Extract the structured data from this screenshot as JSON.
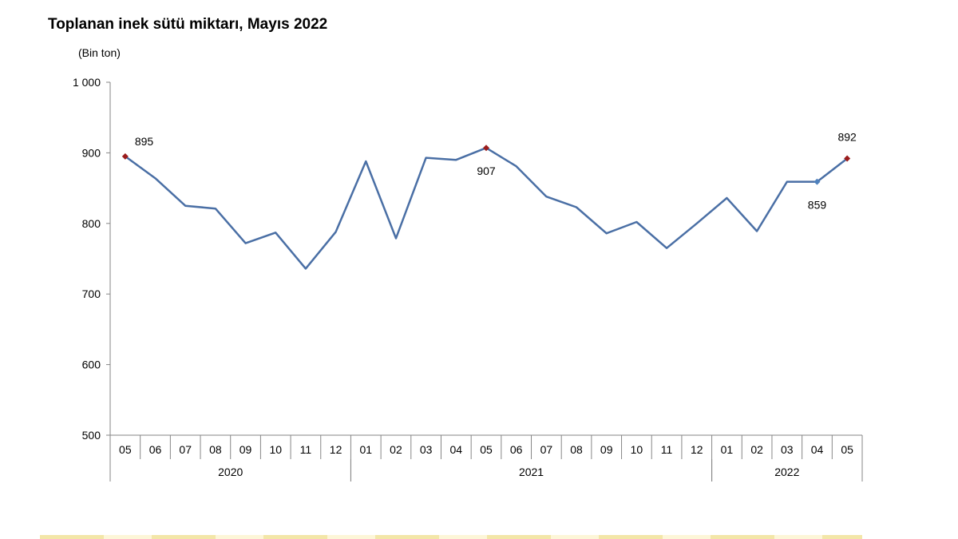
{
  "chart_data": {
    "type": "line",
    "title": "Toplanan inek sütü miktarı, Mayıs 2022",
    "unit_label": "(Bin  ton)",
    "ylim": [
      500,
      1000
    ],
    "yticks": [
      500,
      600,
      700,
      800,
      900,
      1000
    ],
    "ytick_labels": [
      "500",
      "600",
      "700",
      "800",
      "900",
      "1 000"
    ],
    "x": [
      "05",
      "06",
      "07",
      "08",
      "09",
      "10",
      "11",
      "12",
      "01",
      "02",
      "03",
      "04",
      "05",
      "06",
      "07",
      "08",
      "09",
      "10",
      "11",
      "12",
      "01",
      "02",
      "03",
      "04",
      "05"
    ],
    "year_groups": [
      {
        "label": "2020",
        "start": 0,
        "end": 7
      },
      {
        "label": "2021",
        "start": 8,
        "end": 19
      },
      {
        "label": "2022",
        "start": 20,
        "end": 24
      }
    ],
    "series": [
      {
        "values": [
          895,
          864,
          825,
          821,
          772,
          787,
          736,
          788,
          888,
          779,
          893,
          890,
          907,
          881,
          838,
          823,
          786,
          802,
          765,
          800,
          836,
          789,
          859,
          859,
          892
        ]
      }
    ],
    "highlights": [
      {
        "index": 0,
        "label": "895",
        "color": "#9b1c1c",
        "label_pos": "above-right"
      },
      {
        "index": 12,
        "label": "907",
        "color": "#9b1c1c",
        "label_pos": "below"
      },
      {
        "index": 23,
        "label": "859",
        "color": "#4f81bd",
        "label_pos": "below"
      },
      {
        "index": 24,
        "label": "892",
        "color": "#9b1c1c",
        "label_pos": "above"
      }
    ],
    "line_color": "#4a6fa5",
    "grid": false
  }
}
